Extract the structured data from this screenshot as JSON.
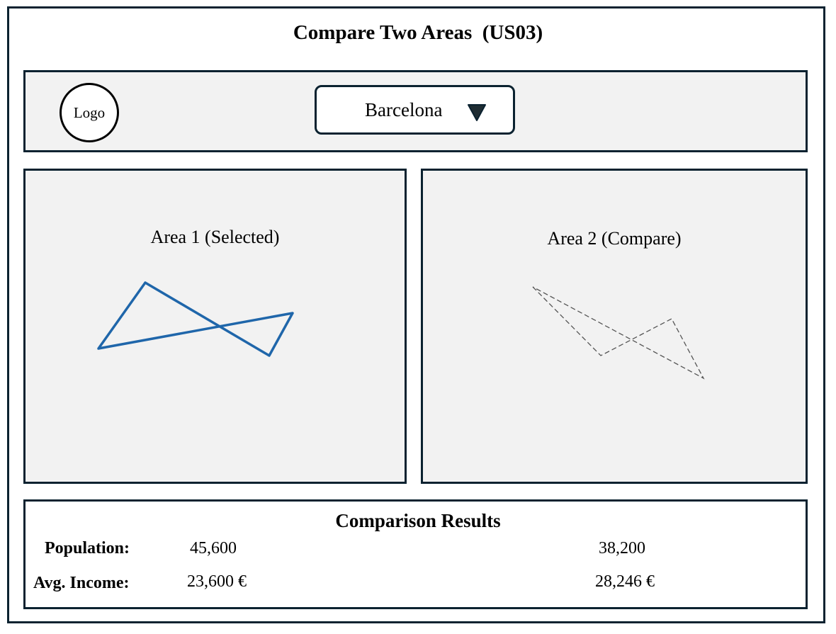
{
  "page": {
    "title": "Compare Two Areas  (US03)"
  },
  "header": {
    "logo_text": "Logo",
    "city_select": {
      "value": "Barcelona",
      "caret_icon": "triangle-down-icon"
    }
  },
  "areas": [
    {
      "label": "Area 1 (Selected)",
      "outline_style": "solid",
      "outline_color": "#1f66aa"
    },
    {
      "label": "Area 2 (Compare)",
      "outline_style": "dashed",
      "outline_color": "#555555"
    }
  ],
  "results": {
    "title": "Comparison Results",
    "rows": [
      {
        "label": "Population:",
        "area1": "45,600",
        "area2": "38,200"
      },
      {
        "label": "Avg. Income:",
        "area1": "23,600 €",
        "area2": "28,246 €"
      }
    ]
  },
  "colors": {
    "border": "#0b2230",
    "panel_bg": "#f2f2f2",
    "area1_outline": "#1f66aa",
    "area2_outline": "#555555"
  }
}
